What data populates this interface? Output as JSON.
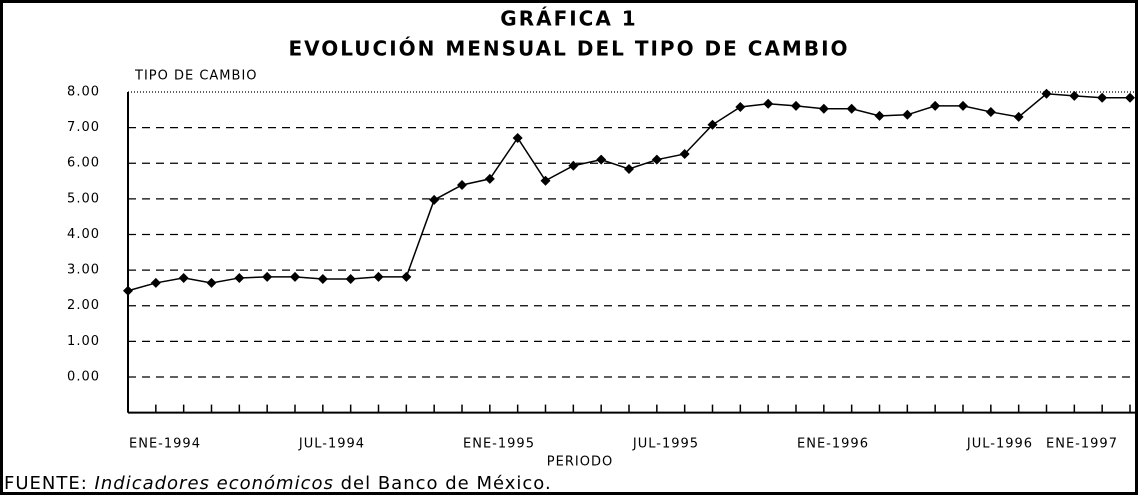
{
  "chart_data": {
    "type": "line",
    "title": "GRÁFICA 1",
    "subtitle": "EVOLUCIÓN MENSUAL DEL TIPO DE CAMBIO",
    "y_label": "TIPO DE CAMBIO",
    "x_label": "PERIODO",
    "source": {
      "prefix": "FUENTE:",
      "italic": "Indicadores económicos",
      "suffix": "del Banco de México."
    },
    "categories": [
      "ENE-1994",
      null,
      null,
      null,
      null,
      null,
      "JUL-1994",
      null,
      null,
      null,
      null,
      null,
      "ENE-1995",
      null,
      null,
      null,
      null,
      null,
      "JUL-1995",
      null,
      null,
      null,
      null,
      null,
      "ENE-1996",
      null,
      null,
      null,
      null,
      null,
      "JUL-1996",
      null,
      null,
      null,
      null,
      null,
      "ENE-1997"
    ],
    "series": [
      {
        "name": "TIPO DE CAMBIO",
        "color": "#000000",
        "values": [
          2.42,
          2.64,
          2.78,
          2.64,
          2.78,
          2.81,
          2.81,
          2.75,
          2.75,
          2.81,
          2.81,
          4.97,
          5.39,
          5.56,
          6.71,
          5.51,
          5.93,
          6.1,
          5.84,
          6.1,
          6.26,
          7.08,
          7.58,
          7.67,
          7.61,
          7.53,
          7.53,
          7.33,
          7.36,
          7.61,
          7.61,
          7.44,
          7.3,
          7.95,
          7.89,
          7.84,
          7.84
        ]
      }
    ],
    "ylim": [
      -1,
      8
    ],
    "yticks": [
      {
        "value": 0,
        "label": "0.00"
      },
      {
        "value": 1,
        "label": "1.00"
      },
      {
        "value": 2,
        "label": "2.00"
      },
      {
        "value": 3,
        "label": "3.00"
      },
      {
        "value": 4,
        "label": "4.00"
      },
      {
        "value": 5,
        "label": "5.00"
      },
      {
        "value": 6,
        "label": "6.00"
      },
      {
        "value": 7,
        "label": "7.00"
      },
      {
        "value": 8,
        "label": "8.00"
      }
    ],
    "grid": true
  }
}
